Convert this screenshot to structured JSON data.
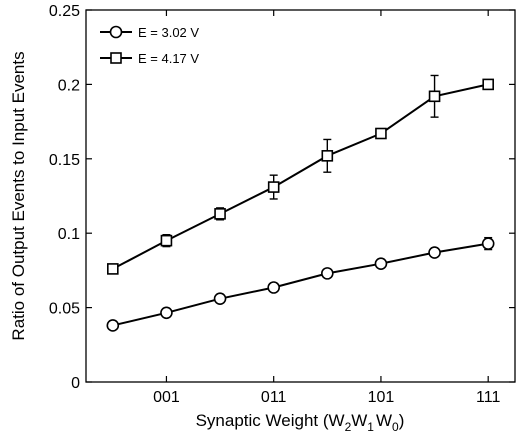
{
  "chart_data": {
    "type": "line",
    "xlabel_main": "Synaptic Weight (W",
    "xlabel_sub2": "2",
    "xlabel_w": "W",
    "xlabel_sub1": "1",
    "xlabel_w0": "W",
    "xlabel_sub0": "0",
    "xlabel_close": ")",
    "ylabel": "Ratio of Output Events to Input Events",
    "x": [
      0,
      1,
      2,
      3,
      4,
      5,
      6,
      7
    ],
    "xlim": [
      -0.5,
      7.5
    ],
    "ylim": [
      0,
      0.25
    ],
    "x_ticks": [
      {
        "x": 1,
        "label": "001"
      },
      {
        "x": 3,
        "label": "011"
      },
      {
        "x": 5,
        "label": "101"
      },
      {
        "x": 7,
        "label": "111"
      }
    ],
    "y_ticks": [
      {
        "y": 0,
        "label": "0"
      },
      {
        "y": 0.05,
        "label": "0.05"
      },
      {
        "y": 0.1,
        "label": "0.1"
      },
      {
        "y": 0.15,
        "label": "0.15"
      },
      {
        "y": 0.2,
        "label": "0.2"
      },
      {
        "y": 0.25,
        "label": "0.25"
      }
    ],
    "grid": false,
    "legend_position": "top-left",
    "series": [
      {
        "name": "E = 3.02 V",
        "marker": "circle",
        "values": [
          0.038,
          0.0465,
          0.056,
          0.0635,
          0.073,
          0.0795,
          0.087,
          0.093
        ],
        "errors": [
          0.002,
          0.002,
          0.002,
          0.002,
          0.002,
          0.002,
          0.002,
          0.004
        ]
      },
      {
        "name": "E = 4.17 V",
        "marker": "square",
        "values": [
          0.076,
          0.095,
          0.113,
          0.131,
          0.152,
          0.167,
          0.192,
          0.2
        ],
        "errors": [
          0.002,
          0.004,
          0.004,
          0.008,
          0.011,
          0.002,
          0.014,
          0.002
        ]
      }
    ]
  }
}
